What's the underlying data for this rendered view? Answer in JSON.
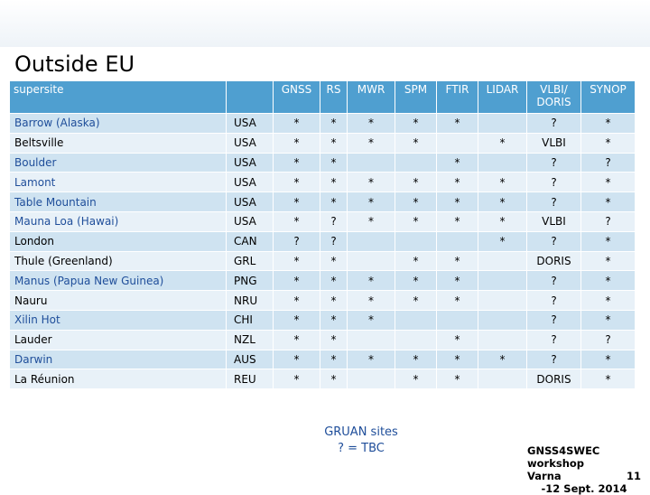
{
  "title": "Outside EU",
  "table": {
    "headers": [
      "supersite",
      "",
      "GNSS",
      "RS",
      "MWR",
      "SPM",
      "FTIR",
      "LIDAR",
      "VLBI/\nDORIS",
      "SYNOP"
    ],
    "rows": [
      {
        "site": "Barrow (Alaska)",
        "country": "USA",
        "cells": [
          "*",
          "*",
          "*",
          "*",
          "*",
          "",
          "?",
          "*"
        ]
      },
      {
        "site": "Beltsville",
        "country": "USA",
        "cells": [
          "*",
          "*",
          "*",
          "*",
          "",
          "*",
          "VLBI",
          "*"
        ]
      },
      {
        "site": "Boulder",
        "country": "USA",
        "cells": [
          "*",
          "*",
          "",
          "",
          "*",
          "",
          "?",
          "?"
        ]
      },
      {
        "site": "Lamont",
        "country": "USA",
        "cells": [
          "*",
          "*",
          "*",
          "*",
          "*",
          "*",
          "?",
          "*"
        ]
      },
      {
        "site": "Table Mountain",
        "country": "USA",
        "cells": [
          "*",
          "*",
          "*",
          "*",
          "*",
          "*",
          "?",
          "*"
        ]
      },
      {
        "site": "Mauna Loa (Hawai)",
        "country": "USA",
        "cells": [
          "*",
          "?",
          "*",
          "*",
          "*",
          "*",
          "VLBI",
          "?"
        ]
      },
      {
        "site": "London",
        "country": "CAN",
        "cells": [
          "?",
          "?",
          "",
          "",
          "",
          "*",
          "?",
          "*"
        ]
      },
      {
        "site": "Thule (Greenland)",
        "country": "GRL",
        "cells": [
          "*",
          "*",
          "",
          "*",
          "*",
          "",
          "DORIS",
          "*"
        ]
      },
      {
        "site": "Manus (Papua New Guinea)",
        "country": "PNG",
        "cells": [
          "*",
          "*",
          "*",
          "*",
          "*",
          "",
          "?",
          "*"
        ]
      },
      {
        "site": "Nauru",
        "country": "NRU",
        "cells": [
          "*",
          "*",
          "*",
          "*",
          "*",
          "",
          "?",
          "*"
        ]
      },
      {
        "site": "Xilin Hot",
        "country": "CHI",
        "cells": [
          "*",
          "*",
          "*",
          "",
          "",
          "",
          "?",
          "*"
        ]
      },
      {
        "site": "Lauder",
        "country": "NZL",
        "cells": [
          "*",
          "*",
          "",
          "",
          "*",
          "",
          "?",
          "?"
        ]
      },
      {
        "site": "Darwin",
        "country": "AUS",
        "cells": [
          "*",
          "*",
          "*",
          "*",
          "*",
          "*",
          "?",
          "*"
        ]
      },
      {
        "site": "La Réunion",
        "country": "REU",
        "cells": [
          "*",
          "*",
          "",
          "*",
          "*",
          "",
          "DORIS",
          "*"
        ]
      }
    ]
  },
  "footer": {
    "line1": "GRUAN sites",
    "line2": "? = TBC"
  },
  "workshop": {
    "line1": "GNSS4SWEC workshop",
    "line2_left": "Varna",
    "line2_right": "11",
    "line3": "-12 Sept. 2014"
  }
}
